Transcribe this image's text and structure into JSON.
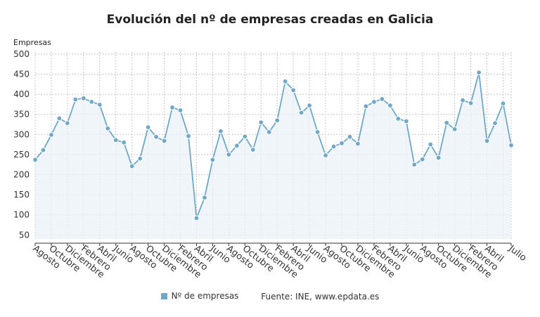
{
  "chart_data": {
    "type": "line",
    "title": "Evolución del nº de empresas creadas en Galicia",
    "ylabel": "Empresas",
    "xlabel": "",
    "ylim": [
      40,
      505
    ],
    "yticks": [
      50,
      100,
      150,
      200,
      250,
      300,
      350,
      400,
      450,
      500
    ],
    "x_tick_labels": [
      "Agosto",
      "Octubre",
      "Diciembre",
      "Febrero",
      "Abril",
      "Junio",
      "Agosto",
      "Octubre",
      "Diciembre",
      "Febrero",
      "Abril",
      "Junio",
      "Agosto",
      "Octubre",
      "Diciembre",
      "Febrero",
      "Abril",
      "Junio",
      "Agosto",
      "Octubre",
      "Diciembre",
      "Febrero",
      "Abril",
      "Junio",
      "Agosto",
      "Octubre",
      "Diciembre",
      "Febrero",
      "Abril",
      "Julio"
    ],
    "grid": true,
    "legend": "bottom",
    "series": [
      {
        "name": "Nº de empresas",
        "color": "#6fa8c8",
        "values": [
          237,
          261,
          299,
          340,
          328,
          387,
          390,
          381,
          374,
          315,
          286,
          280,
          221,
          240,
          318,
          294,
          284,
          367,
          360,
          296,
          92,
          143,
          237,
          308,
          250,
          272,
          295,
          262,
          330,
          306,
          335,
          432,
          410,
          354,
          372,
          306,
          248,
          270,
          278,
          294,
          277,
          370,
          381,
          388,
          372,
          339,
          333,
          225,
          238,
          275,
          242,
          329,
          313,
          385,
          378,
          454,
          284,
          328,
          377,
          273
        ]
      }
    ],
    "source": "Fuente: INE, www.epdata.es"
  }
}
